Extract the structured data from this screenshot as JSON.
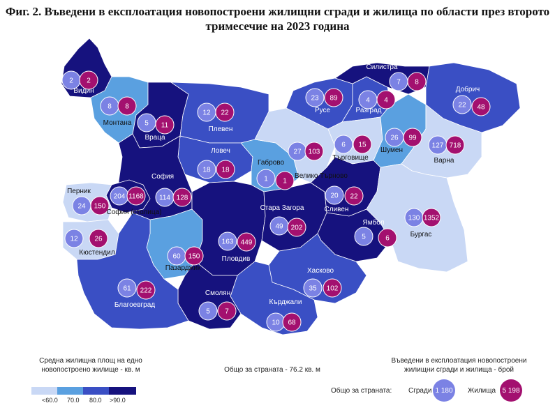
{
  "title": "Фиг. 2. Въведени в експлоатация новопостроени жилищни сгради и жилища по области през второто тримесечие на 2023 година",
  "colors": {
    "lt60": "#c9d8f5",
    "c70": "#5aa0e0",
    "c80": "#3a4fc4",
    "gt90": "#16127e",
    "bubble_buildings": "#7b82e4",
    "bubble_dwellings": "#a3106f"
  },
  "regions": [
    {
      "name": "Видин",
      "buildings": "2",
      "dwellings": "2",
      "area_class": "gt90"
    },
    {
      "name": "Монтана",
      "buildings": "8",
      "dwellings": "8",
      "area_class": "c70"
    },
    {
      "name": "Враца",
      "buildings": "5",
      "dwellings": "11",
      "area_class": "gt90"
    },
    {
      "name": "Плевен",
      "buildings": "12",
      "dwellings": "22",
      "area_class": "c80"
    },
    {
      "name": "Ловеч",
      "buildings": "18",
      "dwellings": "18",
      "area_class": "c80"
    },
    {
      "name": "Габрово",
      "buildings": "1",
      "dwellings": "1",
      "area_class": "c70"
    },
    {
      "name": "Велико Търново",
      "buildings": "27",
      "dwellings": "103",
      "area_class": "lt60"
    },
    {
      "name": "Русе",
      "buildings": "23",
      "dwellings": "89",
      "area_class": "c80"
    },
    {
      "name": "Разград",
      "buildings": "4",
      "dwellings": "4",
      "area_class": "c80"
    },
    {
      "name": "Силистра",
      "buildings": "7",
      "dwellings": "8",
      "area_class": "gt90"
    },
    {
      "name": "Добрич",
      "buildings": "22",
      "dwellings": "48",
      "area_class": "c80"
    },
    {
      "name": "Търговище",
      "buildings": "6",
      "dwellings": "15",
      "area_class": "lt60"
    },
    {
      "name": "Шумен",
      "buildings": "26",
      "dwellings": "99",
      "area_class": "c70"
    },
    {
      "name": "Варна",
      "buildings": "127",
      "dwellings": "718",
      "area_class": "lt60"
    },
    {
      "name": "София",
      "buildings": "114",
      "dwellings": "128",
      "area_class": "gt90"
    },
    {
      "name": "София (столица)",
      "buildings": "204",
      "dwellings": "1168",
      "area_class": "gt90"
    },
    {
      "name": "Перник",
      "buildings": "24",
      "dwellings": "150",
      "area_class": "lt60"
    },
    {
      "name": "Кюстендил",
      "buildings": "12",
      "dwellings": "26",
      "area_class": "lt60"
    },
    {
      "name": "Пазарджик",
      "buildings": "60",
      "dwellings": "150",
      "area_class": "c70"
    },
    {
      "name": "Пловдив",
      "buildings": "163",
      "dwellings": "449",
      "area_class": "gt90"
    },
    {
      "name": "Стара Загора",
      "buildings": "49",
      "dwellings": "202",
      "area_class": "gt90"
    },
    {
      "name": "Сливен",
      "buildings": "20",
      "dwellings": "22",
      "area_class": "gt90"
    },
    {
      "name": "Ямбол",
      "buildings": "5",
      "dwellings": "6",
      "area_class": "gt90"
    },
    {
      "name": "Бургас",
      "buildings": "130",
      "dwellings": "1352",
      "area_class": "lt60"
    },
    {
      "name": "Хасково",
      "buildings": "35",
      "dwellings": "102",
      "area_class": "c80"
    },
    {
      "name": "Кърджали",
      "buildings": "10",
      "dwellings": "68",
      "area_class": "c80"
    },
    {
      "name": "Смолян",
      "buildings": "5",
      "dwellings": "7",
      "area_class": "gt90"
    },
    {
      "name": "Благоевград",
      "buildings": "61",
      "dwellings": "222",
      "area_class": "c80"
    }
  ],
  "legend_left": {
    "title_line1": "Средна жилищна площ на едно",
    "title_line2": "новопостроено жилище - кв. м",
    "labels": [
      "<60.0",
      "70.0",
      "80.0",
      ">90.0"
    ]
  },
  "center_note": "Общо за страната - 76.2 кв. м",
  "legend_right": {
    "title_line1": "Въведени в експлоатация новопостроени",
    "title_line2": "жилищни сгради и жилища - брой",
    "total_label": "Общо за страната:",
    "buildings_label": "Сгради",
    "buildings_total": "1 180",
    "dwellings_label": "Жилища",
    "dwellings_total": "5 198"
  }
}
